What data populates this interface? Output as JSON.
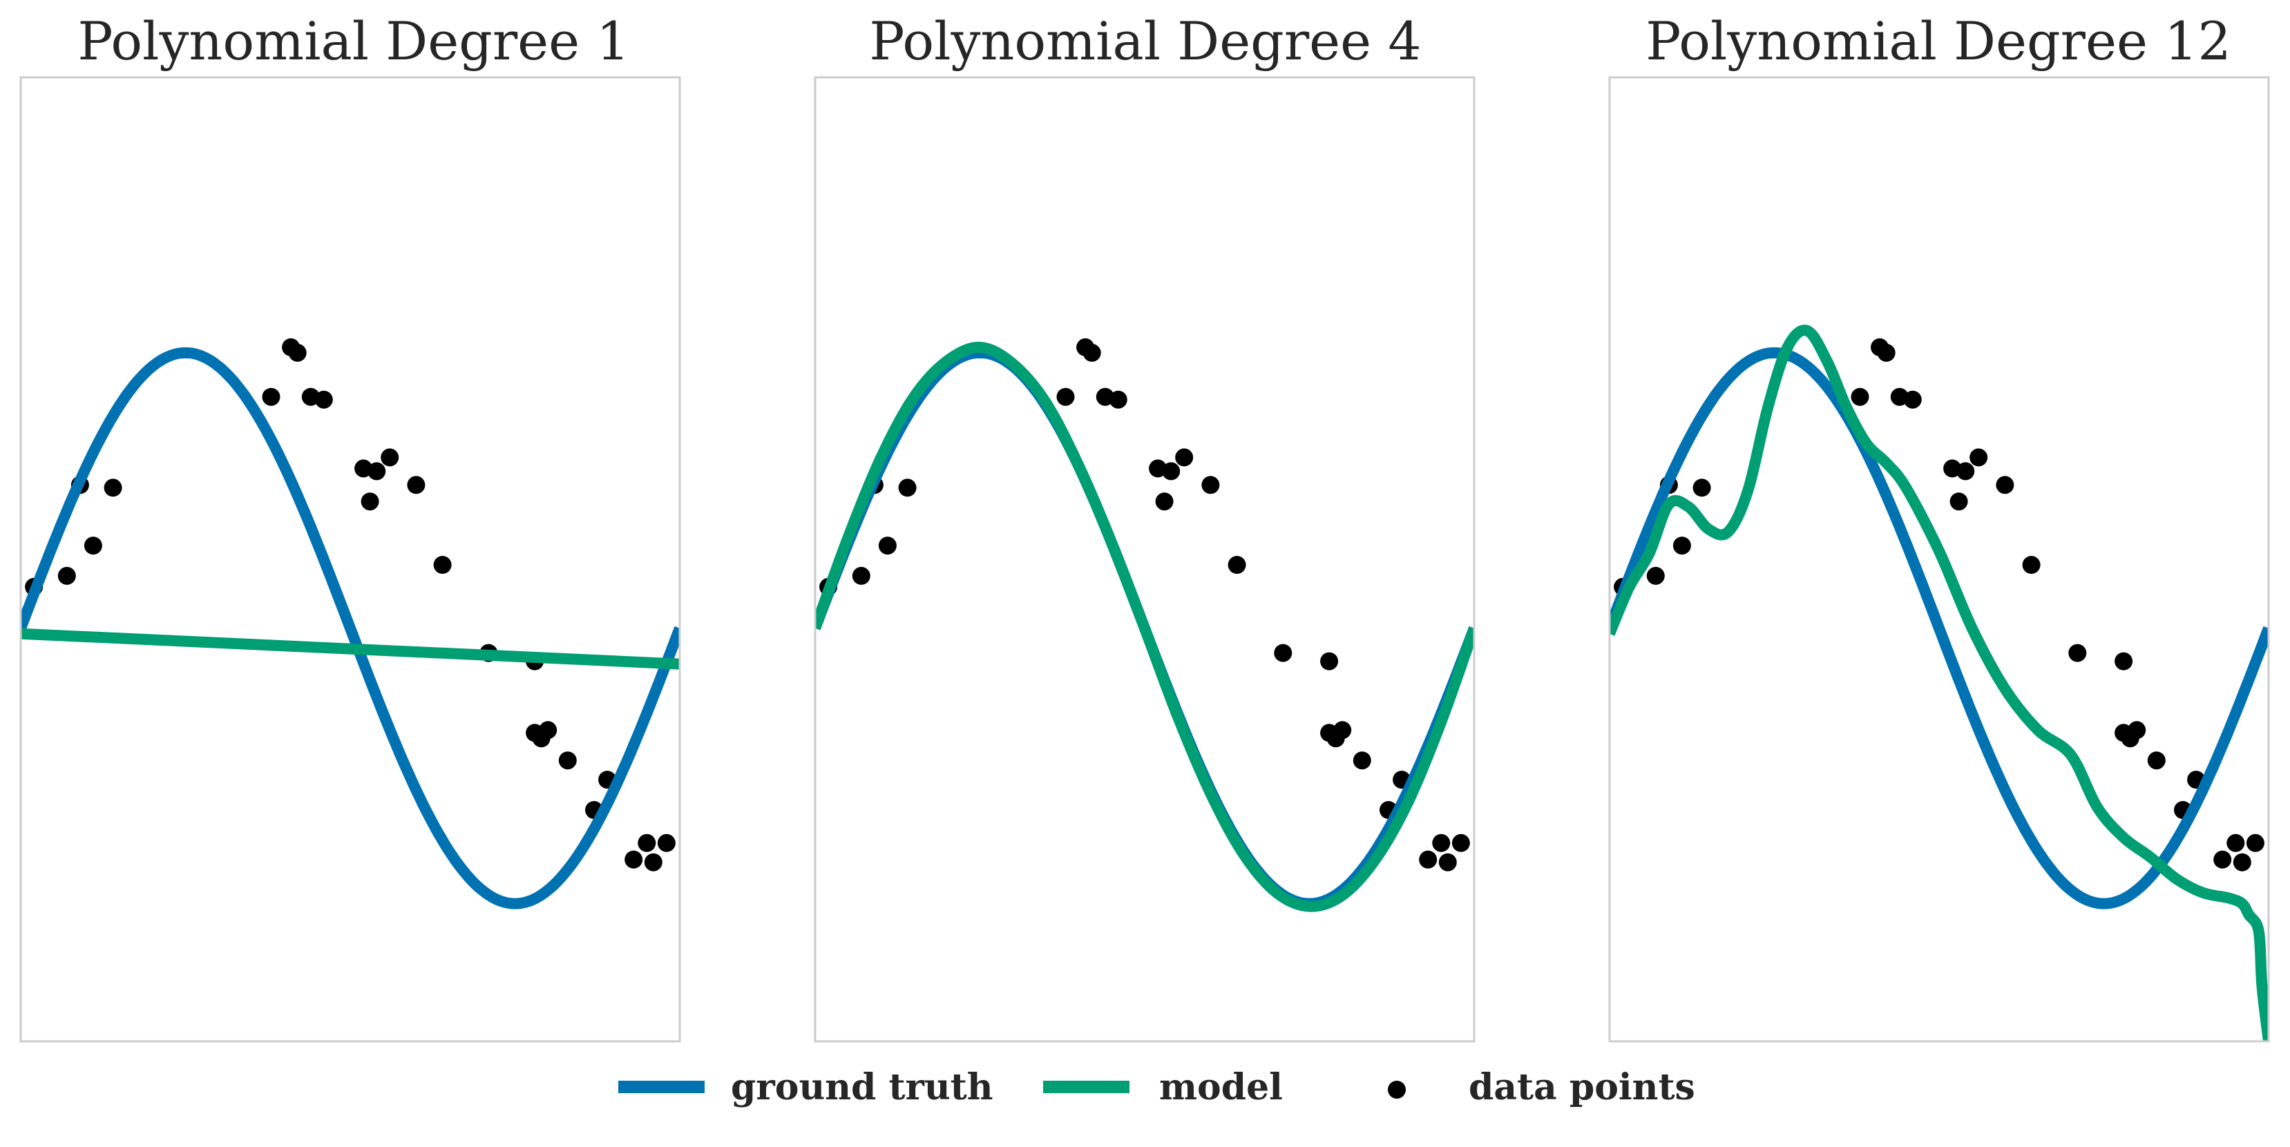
{
  "chart_data": {
    "type": "line",
    "x_range": [
      0,
      1
    ],
    "ylim": [
      -1.5,
      2.0
    ],
    "grid": false,
    "ground_truth": {
      "x": [
        0.0,
        0.05,
        0.1,
        0.15,
        0.2,
        0.25,
        0.3,
        0.35,
        0.4,
        0.45,
        0.5,
        0.55,
        0.6,
        0.65,
        0.7,
        0.75,
        0.8,
        0.85,
        0.9,
        0.95,
        1.0
      ],
      "y": [
        0.0,
        0.31,
        0.59,
        0.81,
        0.95,
        1.0,
        0.95,
        0.81,
        0.59,
        0.31,
        0.0,
        -0.31,
        -0.59,
        -0.81,
        -0.95,
        -1.0,
        -0.95,
        -0.81,
        -0.59,
        -0.31,
        0.0
      ]
    },
    "data_points": [
      {
        "x": 0.02,
        "y": 0.15
      },
      {
        "x": 0.07,
        "y": 0.19
      },
      {
        "x": 0.09,
        "y": 0.52
      },
      {
        "x": 0.11,
        "y": 0.3
      },
      {
        "x": 0.14,
        "y": 0.51
      },
      {
        "x": 0.38,
        "y": 0.84
      },
      {
        "x": 0.41,
        "y": 1.02
      },
      {
        "x": 0.42,
        "y": 1.0
      },
      {
        "x": 0.44,
        "y": 0.84
      },
      {
        "x": 0.46,
        "y": 0.83
      },
      {
        "x": 0.52,
        "y": 0.58
      },
      {
        "x": 0.53,
        "y": 0.46
      },
      {
        "x": 0.54,
        "y": 0.57
      },
      {
        "x": 0.56,
        "y": 0.62
      },
      {
        "x": 0.6,
        "y": 0.52
      },
      {
        "x": 0.64,
        "y": 0.23
      },
      {
        "x": 0.71,
        "y": -0.09
      },
      {
        "x": 0.78,
        "y": -0.12
      },
      {
        "x": 0.78,
        "y": -0.38
      },
      {
        "x": 0.79,
        "y": -0.4
      },
      {
        "x": 0.8,
        "y": -0.37
      },
      {
        "x": 0.83,
        "y": -0.48
      },
      {
        "x": 0.87,
        "y": -0.66
      },
      {
        "x": 0.89,
        "y": -0.55
      },
      {
        "x": 0.93,
        "y": -0.84
      },
      {
        "x": 0.95,
        "y": -0.78
      },
      {
        "x": 0.96,
        "y": -0.85
      },
      {
        "x": 0.98,
        "y": -0.78
      }
    ],
    "panels": [
      {
        "title": "Polynomial Degree 1",
        "model": {
          "x": [
            0,
            1
          ],
          "y": [
            -0.02,
            -0.13
          ]
        }
      },
      {
        "title": "Polynomial Degree 4",
        "model": {
          "x": [
            0.0,
            0.05,
            0.1,
            0.15,
            0.2,
            0.25,
            0.3,
            0.35,
            0.4,
            0.45,
            0.5,
            0.55,
            0.6,
            0.65,
            0.7,
            0.75,
            0.8,
            0.85,
            0.9,
            0.95,
            1.0
          ],
          "y": [
            0.0,
            0.33,
            0.62,
            0.84,
            0.97,
            1.02,
            0.96,
            0.82,
            0.59,
            0.31,
            0.0,
            -0.32,
            -0.6,
            -0.82,
            -0.96,
            -1.01,
            -0.97,
            -0.84,
            -0.63,
            -0.34,
            0.0
          ]
        }
      },
      {
        "title": "Polynomial Degree 12",
        "model": {
          "x": [
            0.0,
            0.03,
            0.06,
            0.09,
            0.12,
            0.15,
            0.18,
            0.21,
            0.24,
            0.27,
            0.3,
            0.33,
            0.36,
            0.39,
            0.42,
            0.45,
            0.5,
            0.55,
            0.6,
            0.65,
            0.7,
            0.74,
            0.78,
            0.82,
            0.86,
            0.9,
            0.94,
            0.96,
            0.97,
            0.985,
            0.99,
            1.0
          ],
          "y": [
            -0.02,
            0.15,
            0.27,
            0.45,
            0.44,
            0.36,
            0.35,
            0.5,
            0.8,
            1.02,
            1.08,
            0.97,
            0.8,
            0.67,
            0.6,
            0.51,
            0.28,
            0.0,
            -0.22,
            -0.37,
            -0.46,
            -0.65,
            -0.76,
            -0.83,
            -0.91,
            -0.96,
            -0.98,
            -1.0,
            -1.04,
            -1.1,
            -1.3,
            -1.5
          ]
        }
      }
    ],
    "legend": {
      "placement": "bottom-center",
      "entries": [
        {
          "label": "ground truth",
          "kind": "line",
          "color": "#0072b2"
        },
        {
          "label": "model",
          "kind": "line",
          "color": "#009e73"
        },
        {
          "label": "data points",
          "kind": "marker",
          "color": "#000000"
        }
      ]
    },
    "colors": {
      "ground_truth": "#0072b2",
      "model": "#009e73",
      "data_points": "#000000",
      "frame": "#cccccc"
    }
  }
}
